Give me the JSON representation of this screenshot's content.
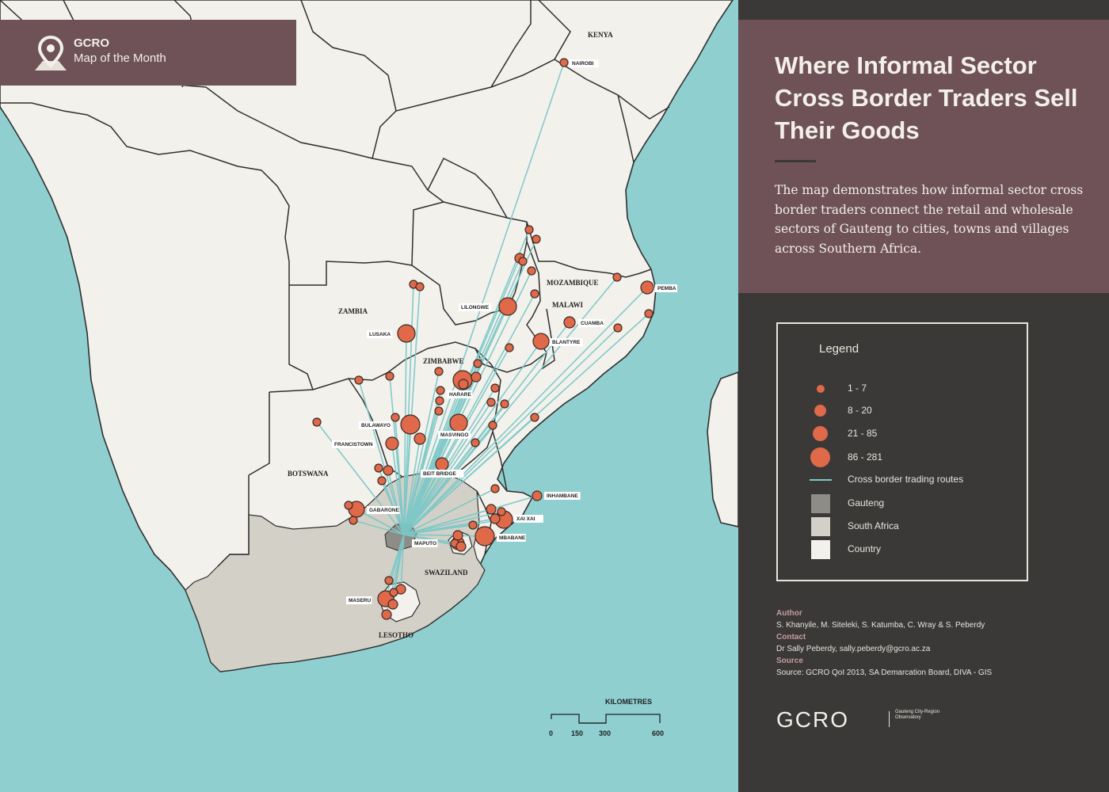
{
  "header": {
    "org": "GCRO",
    "subtitle": "Map of the Month",
    "icon": "map-pin-icon"
  },
  "panel": {
    "title": "Where Informal Sector Cross Border Traders Sell Their Goods",
    "description": "The map demonstrates how informal sector cross border traders connect the retail and wholesale sectors of Gauteng to cities, towns and villages across Southern Africa.",
    "legend": {
      "title": "Legend",
      "items": [
        {
          "label": "1 - 7"
        },
        {
          "label": "8 - 20"
        },
        {
          "label": "21 - 85"
        },
        {
          "label": "86 - 281"
        },
        {
          "label": "Cross border trading routes"
        },
        {
          "label": "Gauteng"
        },
        {
          "label": "South Africa"
        },
        {
          "label": "Country"
        }
      ]
    },
    "credits": {
      "author_heading": "Author",
      "author": "S. Khanyile, M. Siteleki, S. Katumba, C. Wray & S. Peberdy",
      "contact_heading": "Contact",
      "contact": "Dr Sally Peberdy, sally.peberdy@gcro.ac.za",
      "source_heading": "Source",
      "source": "Source: GCRO QoI 2013, SA Demarcation Board, DIVA - GIS"
    },
    "logo": {
      "text": "GCRO",
      "tagline": "Gauteng City-Region Observatory"
    }
  },
  "colors": {
    "sea": "#8fcfd0",
    "country": "#f3f1ec",
    "south_africa": "#d3d1c7",
    "gauteng": "#8e8c86",
    "route": "#7cc8c8",
    "dot": "#e0694a",
    "panel": "#3b3938",
    "accent": "#6e5257"
  },
  "map": {
    "country_labels": [
      "KENYA",
      "ZAMBIA",
      "MOZAMBIQUE",
      "MALAWI",
      "ZIMBABWE",
      "BOTSWANA",
      "SWAZILAND",
      "LESOTHO"
    ],
    "city_labels": [
      "NAIROBI",
      "PEMBA",
      "LILONGWE",
      "CUAMBA",
      "LUSAKA",
      "BLANTYRE",
      "HARARE",
      "BULAWAYO",
      "MASVINGO",
      "FRANCISTOWN",
      "BEIT BRIDGE",
      "INHAMBANE",
      "GABARONE",
      "XAI XAI",
      "MBABANE",
      "MAPUTO",
      "MASERU"
    ],
    "scale": {
      "title": "KILOMETRES",
      "ticks": [
        "0",
        "150",
        "300",
        "600"
      ]
    }
  }
}
